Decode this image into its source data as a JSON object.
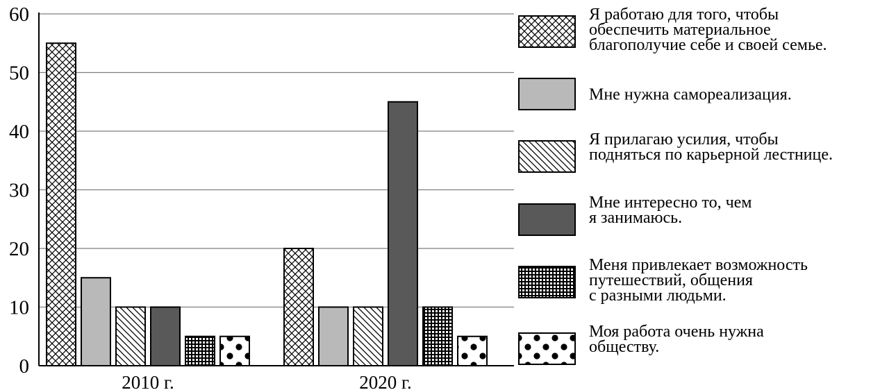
{
  "chart_data": {
    "type": "bar",
    "categories": [
      "2010 г.",
      "2020 г."
    ],
    "ylim": [
      0,
      60
    ],
    "yticks": [
      0,
      10,
      20,
      30,
      40,
      50,
      60
    ],
    "grid": true,
    "legend_position": "right",
    "series": [
      {
        "name": "Я работаю для того, чтобы обеспечить материальное благополучие себе и своей семье.",
        "legend_lines": [
          "Я работаю для того, чтобы",
          "обеспечить материальное",
          "благополучие себе и своей семье."
        ],
        "pattern": "crosshatch",
        "color": "#ffffff",
        "values": [
          55,
          20
        ]
      },
      {
        "name": "Мне нужна самореализация.",
        "legend_lines": [
          "Мне нужна самореализация."
        ],
        "pattern": "solid",
        "color": "#b9b9b9",
        "values": [
          15,
          10
        ]
      },
      {
        "name": "Я прилагаю усилия, чтобы подняться по карьерной лестнице.",
        "legend_lines": [
          "Я прилагаю усилия, чтобы",
          "подняться по карьерной лестнице."
        ],
        "pattern": "diagonal",
        "color": "#ffffff",
        "values": [
          10,
          10
        ]
      },
      {
        "name": "Мне интересно то, чем я занимаюсь.",
        "legend_lines": [
          "Мне интересно то, чем",
          "я занимаюсь."
        ],
        "pattern": "solid",
        "color": "#595959",
        "values": [
          10,
          45
        ]
      },
      {
        "name": "Меня привлекает возможность путешествий, общения с разными людьми.",
        "legend_lines": [
          "Меня привлекает возможность",
          "путешествий, общения",
          "с разными людьми."
        ],
        "pattern": "grid",
        "color": "#ffffff",
        "values": [
          5,
          10
        ]
      },
      {
        "name": "Моя работа очень нужна обществу.",
        "legend_lines": [
          "Моя работа очень нужна",
          "обществу."
        ],
        "pattern": "dots",
        "color": "#ffffff",
        "values": [
          5,
          5
        ]
      }
    ]
  }
}
